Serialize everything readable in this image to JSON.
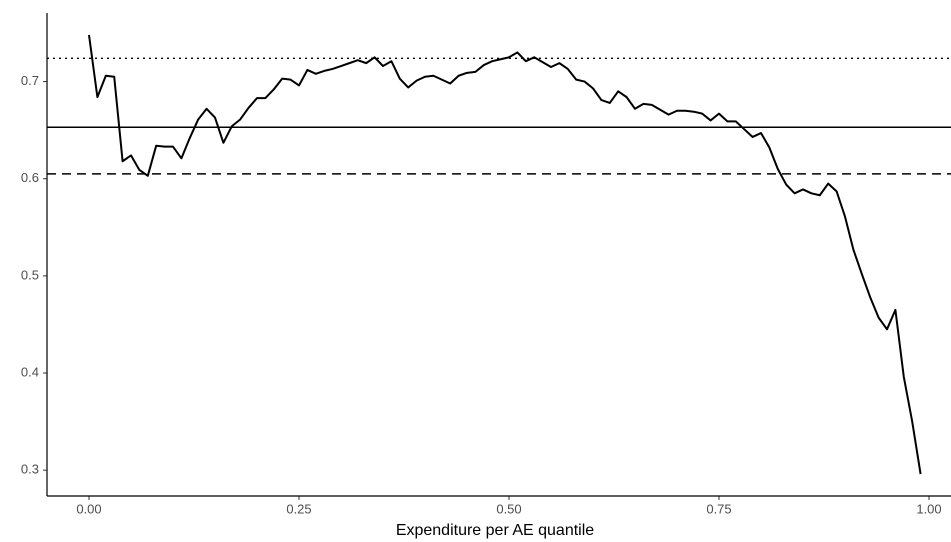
{
  "chart_data": {
    "type": "line",
    "x_label": "Expenditure per AE quantile",
    "x": [
      0,
      0.01,
      0.02,
      0.03,
      0.04,
      0.05,
      0.06,
      0.07,
      0.08,
      0.09,
      0.1,
      0.11,
      0.12,
      0.13,
      0.14,
      0.15,
      0.16,
      0.17,
      0.18,
      0.19,
      0.2,
      0.21,
      0.22,
      0.23,
      0.24,
      0.25,
      0.26,
      0.27,
      0.28,
      0.29,
      0.3,
      0.31,
      0.32,
      0.33,
      0.34,
      0.35,
      0.36,
      0.37,
      0.38,
      0.39,
      0.4,
      0.41,
      0.42,
      0.43,
      0.44,
      0.45,
      0.46,
      0.47,
      0.48,
      0.49,
      0.5,
      0.51,
      0.52,
      0.53,
      0.54,
      0.55,
      0.56,
      0.57,
      0.58,
      0.59,
      0.6,
      0.61,
      0.62,
      0.63,
      0.64,
      0.65,
      0.66,
      0.67,
      0.68,
      0.69,
      0.7,
      0.71,
      0.72,
      0.73,
      0.74,
      0.75,
      0.76,
      0.77,
      0.78,
      0.79,
      0.8,
      0.81,
      0.82,
      0.83,
      0.84,
      0.85,
      0.86,
      0.87,
      0.88,
      0.89,
      0.9,
      0.91,
      0.92,
      0.93,
      0.94,
      0.95,
      0.96,
      0.97,
      0.98,
      0.99
    ],
    "series": [
      {
        "color": "#000000",
        "values": [
          0.748,
          0.684,
          0.706,
          0.705,
          0.618,
          0.624,
          0.609,
          0.603,
          0.634,
          0.633,
          0.633,
          0.621,
          0.642,
          0.661,
          0.672,
          0.663,
          0.637,
          0.654,
          0.661,
          0.673,
          0.683,
          0.683,
          0.692,
          0.703,
          0.702,
          0.696,
          0.712,
          0.708,
          0.711,
          0.713,
          0.716,
          0.719,
          0.722,
          0.719,
          0.725,
          0.716,
          0.721,
          0.703,
          0.694,
          0.701,
          0.705,
          0.706,
          0.702,
          0.698,
          0.706,
          0.709,
          0.71,
          0.717,
          0.721,
          0.723,
          0.725,
          0.73,
          0.721,
          0.725,
          0.72,
          0.715,
          0.719,
          0.713,
          0.702,
          0.7,
          0.693,
          0.681,
          0.678,
          0.69,
          0.684,
          0.672,
          0.677,
          0.676,
          0.671,
          0.666,
          0.67,
          0.67,
          0.669,
          0.667,
          0.66,
          0.667,
          0.659,
          0.659,
          0.651,
          0.643,
          0.647,
          0.632,
          0.61,
          0.594,
          0.585,
          0.589,
          0.585,
          0.583,
          0.595,
          0.587,
          0.561,
          0.527,
          0.502,
          0.478,
          0.457,
          0.445,
          0.465,
          0.396,
          0.35,
          0.296
        ]
      }
    ],
    "hlines": [
      {
        "value": 0.724,
        "dash": "dotted"
      },
      {
        "value": 0.653,
        "dash": "solid"
      },
      {
        "value": 0.605,
        "dash": "dashed"
      }
    ],
    "xlim": [
      -0.05,
      1.04
    ],
    "ylim": [
      0.2734,
      0.7706
    ],
    "xticks": [
      {
        "value": 0,
        "label": "0.00"
      },
      0.25,
      {
        "value": 0.5,
        "label": "0.50"
      },
      0.75,
      {
        "value": 1,
        "label": "1.00"
      }
    ],
    "yticks": [
      0.3,
      0.4,
      0.5,
      0.6,
      0.7
    ]
  }
}
